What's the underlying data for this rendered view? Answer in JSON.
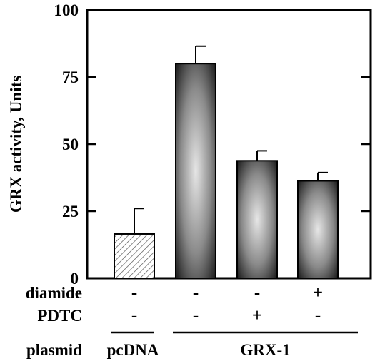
{
  "chart_data": {
    "type": "bar",
    "ylabel": "GRX activity, Units",
    "ylim": [
      0,
      100
    ],
    "yticks": [
      0,
      25,
      50,
      75,
      100
    ],
    "grid": false,
    "bars": [
      {
        "value": 16.5,
        "error": 9.5,
        "fill": "hatched"
      },
      {
        "value": 80,
        "error": 6.5,
        "fill": "radial-gray"
      },
      {
        "value": 43.8,
        "error": 3.7,
        "fill": "radial-gray"
      },
      {
        "value": 36.3,
        "error": 3.1,
        "fill": "radial-gray"
      }
    ],
    "conditions": [
      {
        "label": "diamide",
        "values": [
          "-",
          "-",
          "-",
          "+"
        ]
      },
      {
        "label": "PDTC",
        "values": [
          "-",
          "-",
          "+",
          "-"
        ]
      }
    ],
    "plasmid": {
      "label": "plasmid",
      "groups": [
        {
          "name": "pcDNA",
          "bars": [
            0
          ]
        },
        {
          "name": "GRX-1",
          "bars": [
            1,
            2,
            3
          ]
        }
      ]
    }
  },
  "colors": {
    "axis": "#000000",
    "hatch": "#555555",
    "bar_center": "#e6e6e6",
    "bar_edge": "#1a1a1a"
  }
}
